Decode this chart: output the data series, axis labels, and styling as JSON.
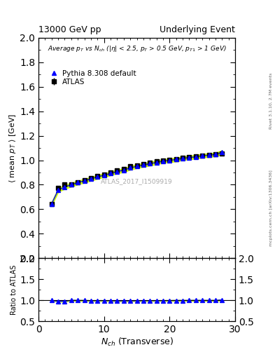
{
  "title_left": "13000 GeV pp",
  "title_right": "Underlying Event",
  "watermark": "ATLAS_2017_I1509919",
  "right_label": "mcplots.cern.ch [arXiv:1306.3436]",
  "rivet_label": "Rivet 3.1.10, 2.7M events",
  "xlabel": "$N_{ch}$ (Transverse)",
  "ylabel": "$\\langle$ mean $p_T$ $\\rangle$ [GeV]",
  "ylabel_ratio": "Ratio to ATLAS",
  "atlas_x": [
    2,
    3,
    4,
    5,
    6,
    7,
    8,
    9,
    10,
    11,
    12,
    13,
    14,
    15,
    16,
    17,
    18,
    19,
    20,
    21,
    22,
    23,
    24,
    25,
    26,
    27,
    28
  ],
  "atlas_y": [
    0.644,
    0.775,
    0.8,
    0.8,
    0.82,
    0.835,
    0.855,
    0.87,
    0.885,
    0.9,
    0.92,
    0.93,
    0.95,
    0.96,
    0.97,
    0.98,
    0.99,
    1.0,
    1.005,
    1.01,
    1.02,
    1.025,
    1.03,
    1.04,
    1.045,
    1.05,
    1.055
  ],
  "atlas_yerr": [
    0.012,
    0.012,
    0.01,
    0.009,
    0.008,
    0.008,
    0.007,
    0.007,
    0.007,
    0.006,
    0.006,
    0.006,
    0.006,
    0.005,
    0.005,
    0.005,
    0.005,
    0.005,
    0.004,
    0.004,
    0.004,
    0.004,
    0.004,
    0.004,
    0.004,
    0.004,
    0.006
  ],
  "pythia_x": [
    2,
    3,
    4,
    5,
    6,
    7,
    8,
    9,
    10,
    11,
    12,
    13,
    14,
    15,
    16,
    17,
    18,
    19,
    20,
    21,
    22,
    23,
    24,
    25,
    26,
    27,
    28
  ],
  "pythia_y": [
    0.644,
    0.757,
    0.782,
    0.8,
    0.818,
    0.832,
    0.848,
    0.864,
    0.878,
    0.892,
    0.908,
    0.919,
    0.938,
    0.95,
    0.961,
    0.972,
    0.982,
    0.993,
    0.999,
    1.006,
    1.016,
    1.022,
    1.028,
    1.037,
    1.042,
    1.047,
    1.065
  ],
  "xlim": [
    0,
    30
  ],
  "ylim_main": [
    0.2,
    2.0
  ],
  "ylim_ratio": [
    0.5,
    2.0
  ],
  "atlas_color": "black",
  "pythia_color": "blue",
  "band_color": "#ccff00"
}
